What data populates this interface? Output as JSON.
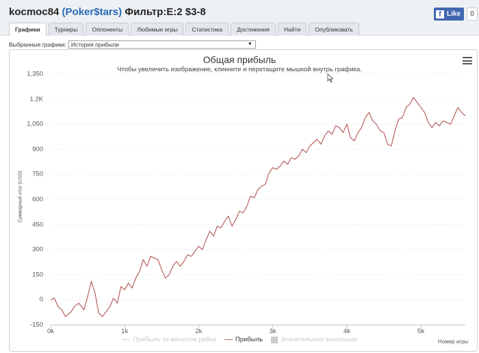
{
  "header": {
    "player": "kocmoc84",
    "site": "(Poker$tars)",
    "filter": "Фильтр:E:2 $3-8",
    "like_label": "Like",
    "like_count": "0"
  },
  "tabs": [
    {
      "label": "Графики",
      "active": true
    },
    {
      "label": "Турниры",
      "active": false
    },
    {
      "label": "Оппоненты",
      "active": false
    },
    {
      "label": "Любимые игры",
      "active": false
    },
    {
      "label": "Статистика",
      "active": false
    },
    {
      "label": "Достижения",
      "active": false
    },
    {
      "label": "Найти",
      "active": false
    },
    {
      "label": "Опубликовать",
      "active": false
    }
  ],
  "graph_select": {
    "label": "Выбранные графики:",
    "value": "История прибыли"
  },
  "colors": {
    "profit_line": "#b5625f",
    "rake_line": "#cccccc",
    "big_wins_box": "#cccccc",
    "site_link": "#2a6ab8"
  },
  "chart_data": {
    "type": "line",
    "title": "Общая прибыль",
    "subtitle": "Чтобы увеличить изображение, кликните и перетащите мышкой внутрь графика.",
    "ylabel": "Суммарный итог (USD)",
    "xlabel": "Номер игры",
    "y_ticks": [
      "1,350",
      "1.2K",
      "1,050",
      "900",
      "750",
      "600",
      "450",
      "300",
      "150",
      "0",
      "-150"
    ],
    "x_ticks": [
      "0k",
      "1k",
      "2k",
      "3k",
      "4k",
      "5k"
    ],
    "xlim": [
      0,
      5600
    ],
    "ylim": [
      -150,
      1350
    ],
    "grid": true,
    "legend_position": "bottom",
    "legend": [
      {
        "name": "Прибыль за минусом рейка",
        "visible": false
      },
      {
        "name": "Прибыль",
        "visible": true
      },
      {
        "name": "Значительные выигрыши",
        "visible": false
      }
    ],
    "series": [
      {
        "name": "Прибыль",
        "x": [
          0,
          50,
          100,
          150,
          200,
          280,
          320,
          380,
          450,
          500,
          550,
          600,
          650,
          700,
          750,
          800,
          850,
          900,
          950,
          1000,
          1050,
          1100,
          1150,
          1200,
          1250,
          1300,
          1350,
          1400,
          1450,
          1500,
          1550,
          1600,
          1650,
          1700,
          1750,
          1800,
          1850,
          1900,
          1950,
          2000,
          2050,
          2100,
          2150,
          2200,
          2250,
          2300,
          2350,
          2400,
          2450,
          2500,
          2550,
          2600,
          2650,
          2700,
          2750,
          2800,
          2850,
          2900,
          2950,
          3000,
          3050,
          3100,
          3150,
          3200,
          3250,
          3300,
          3350,
          3400,
          3450,
          3500,
          3550,
          3600,
          3650,
          3700,
          3750,
          3800,
          3850,
          3900,
          3950,
          4000,
          4050,
          4100,
          4150,
          4200,
          4250,
          4300,
          4350,
          4400,
          4450,
          4500,
          4550,
          4600,
          4650,
          4700,
          4750,
          4800,
          4850,
          4900,
          4950,
          5000,
          5050,
          5100,
          5150,
          5200,
          5250,
          5300,
          5350,
          5400,
          5450,
          5500,
          5550,
          5600
        ],
        "values": [
          0,
          10,
          -40,
          -60,
          -100,
          -70,
          -40,
          -20,
          -60,
          20,
          110,
          40,
          -80,
          -100,
          -70,
          -40,
          10,
          -20,
          80,
          60,
          100,
          70,
          130,
          170,
          240,
          200,
          260,
          250,
          240,
          180,
          130,
          150,
          200,
          230,
          200,
          230,
          270,
          260,
          290,
          320,
          300,
          360,
          410,
          380,
          440,
          430,
          470,
          500,
          440,
          480,
          530,
          520,
          560,
          620,
          610,
          660,
          680,
          690,
          760,
          790,
          780,
          800,
          830,
          810,
          850,
          840,
          860,
          900,
          880,
          920,
          940,
          960,
          930,
          980,
          1010,
          990,
          1040,
          1030,
          1000,
          1050,
          970,
          950,
          1000,
          1030,
          1090,
          1120,
          1070,
          1050,
          1010,
          1000,
          930,
          920,
          1010,
          1080,
          1090,
          1150,
          1170,
          1210,
          1180,
          1150,
          1120,
          1060,
          1030,
          1060,
          1040,
          1070,
          1060,
          1050,
          1100,
          1150,
          1120,
          1100
        ]
      }
    ]
  }
}
